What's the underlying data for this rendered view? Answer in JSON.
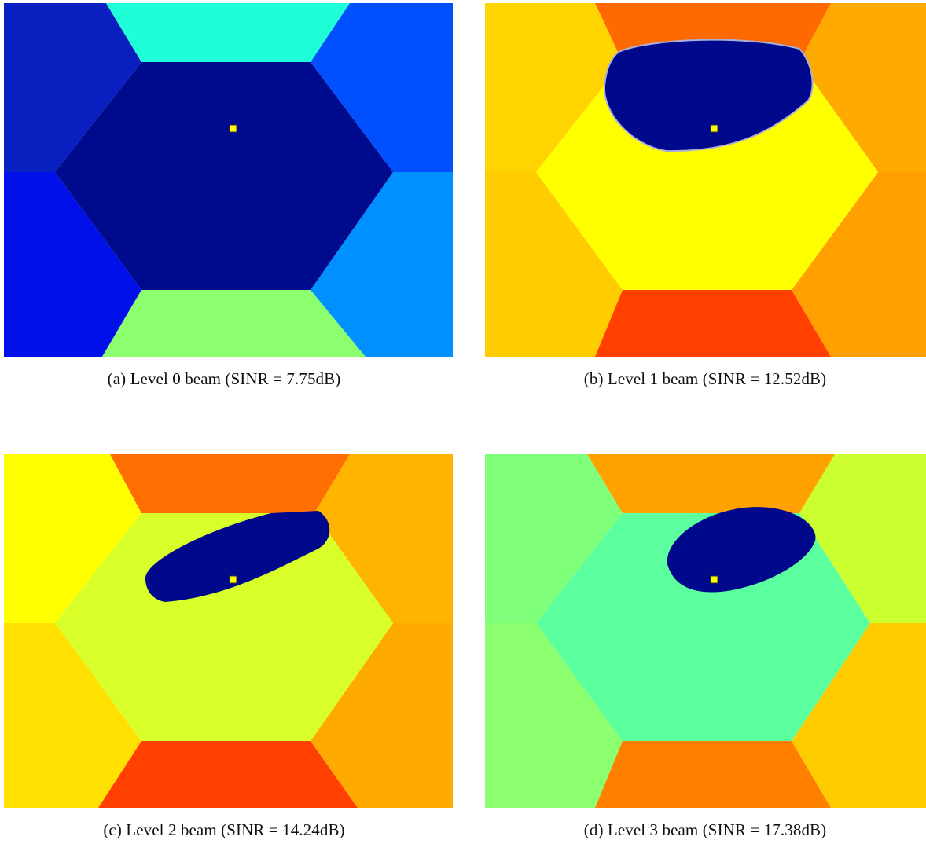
{
  "figure": {
    "panels": [
      {
        "id": "a",
        "caption": "(a) Level 0 beam (SINR = 7.75dB)",
        "colors": {
          "top_left": "#0a1fbf",
          "top": "#1effd8",
          "top_right": "#0050ff",
          "bottom_left": "#0010e8",
          "bottom": "#8cff6e",
          "bottom_right": "#0090ff",
          "center": "#000a8c",
          "beam": "#000a8c",
          "marker": "#ffff00"
        }
      },
      {
        "id": "b",
        "caption": "(b) Level 1 beam (SINR = 12.52dB)",
        "colors": {
          "top_left": "#ffd400",
          "top": "#ff6a00",
          "top_right": "#ffaa00",
          "bottom_left": "#ffcc00",
          "bottom": "#ff4000",
          "bottom_right": "#ffa000",
          "center": "#ffff00",
          "beam": "#00088c",
          "marker": "#ffff00"
        }
      },
      {
        "id": "c",
        "caption": "(c) Level 2 beam (SINR = 14.24dB)",
        "colors": {
          "top_left": "#ffff00",
          "top": "#ff6e00",
          "top_right": "#ffb400",
          "bottom_left": "#ffe000",
          "bottom": "#ff4000",
          "bottom_right": "#ffaa00",
          "center": "#d8ff2a",
          "beam": "#00088c",
          "marker": "#ffff00"
        }
      },
      {
        "id": "d",
        "caption": "(d) Level 3 beam (SINR = 17.38dB)",
        "colors": {
          "top_left": "#80ff7a",
          "top": "#ffa200",
          "top_right": "#ccff30",
          "bottom_left": "#8cff6e",
          "bottom": "#ff8000",
          "bottom_right": "#ffcc00",
          "center": "#5cff9e",
          "beam": "#00088c",
          "marker": "#ffff00"
        }
      }
    ]
  }
}
